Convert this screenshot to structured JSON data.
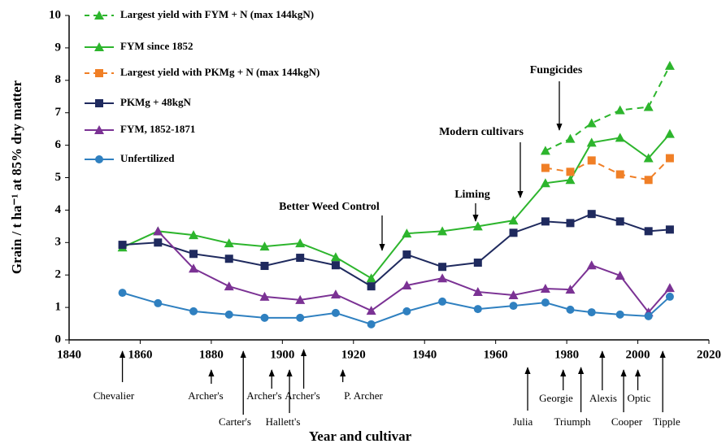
{
  "chart_data": {
    "type": "line",
    "x_label": "Year and cultivar",
    "y_label": "Grain / t ha⁻¹ at 85% dry matter",
    "x": [
      1855,
      1865,
      1875,
      1885,
      1895,
      1905,
      1915,
      1925,
      1935,
      1945,
      1955,
      1965,
      1974,
      1981,
      1987,
      1995,
      2003,
      2009
    ],
    "xlim": [
      1840,
      2020
    ],
    "xticks": [
      1840,
      1860,
      1880,
      1900,
      1920,
      1940,
      1960,
      1980,
      2000,
      2020
    ],
    "ylim": [
      0,
      10
    ],
    "yticks": [
      0,
      1,
      2,
      3,
      4,
      5,
      6,
      7,
      8,
      9,
      10
    ],
    "legend": "top-left",
    "series": [
      {
        "name": "Largest yield with FYM + N (max 144kgN)",
        "color": "#2db52d",
        "marker": "triangle",
        "dashed": true,
        "values": [
          null,
          null,
          null,
          null,
          null,
          null,
          null,
          null,
          null,
          null,
          null,
          null,
          5.83,
          6.2,
          6.68,
          7.08,
          7.18,
          8.45
        ]
      },
      {
        "name": "FYM since 1852",
        "color": "#2db52d",
        "marker": "triangle",
        "dashed": false,
        "values": [
          2.85,
          3.35,
          3.23,
          2.98,
          2.88,
          2.98,
          2.55,
          1.9,
          3.28,
          3.35,
          3.5,
          3.68,
          4.83,
          4.93,
          6.08,
          6.23,
          5.6,
          6.35
        ]
      },
      {
        "name": "Largest yield with PKMg + N (max 144kgN)",
        "color": "#f07f26",
        "marker": "square",
        "dashed": true,
        "values": [
          null,
          null,
          null,
          null,
          null,
          null,
          null,
          null,
          null,
          null,
          null,
          null,
          5.3,
          5.18,
          5.53,
          5.1,
          4.93,
          5.6
        ]
      },
      {
        "name": "PKMg + 48kgN",
        "color": "#1f2a5e",
        "marker": "square",
        "dashed": false,
        "values": [
          2.93,
          3.0,
          2.65,
          2.5,
          2.28,
          2.53,
          2.3,
          1.65,
          2.63,
          2.25,
          2.38,
          3.3,
          3.65,
          3.6,
          3.88,
          3.65,
          3.35,
          3.4
        ]
      },
      {
        "name": "FYM, 1852-1871",
        "color": "#7b3294",
        "marker": "triangle",
        "dashed": false,
        "values": [
          null,
          3.35,
          2.2,
          1.65,
          1.33,
          1.23,
          1.4,
          0.9,
          1.68,
          1.9,
          1.48,
          1.38,
          1.58,
          1.55,
          2.3,
          1.98,
          0.85,
          1.6
        ]
      },
      {
        "name": "Unfertilized",
        "color": "#2f80c0",
        "marker": "circle",
        "dashed": false,
        "values": [
          1.45,
          1.13,
          0.88,
          0.78,
          0.68,
          0.68,
          0.83,
          0.48,
          0.88,
          1.18,
          0.95,
          1.05,
          1.15,
          0.93,
          0.85,
          0.78,
          0.73,
          1.33
        ]
      }
    ],
    "annotations": [
      "Better Weed Control",
      "Liming",
      "Modern cultivars",
      "Fungicides"
    ],
    "cultivars": [
      {
        "label": "Chevalier",
        "year": 1855
      },
      {
        "label": "Archer's",
        "year": 1880
      },
      {
        "label": "Carter's",
        "year": 1889
      },
      {
        "label": "Archer's",
        "year": 1897
      },
      {
        "label": "Hallett's",
        "year": 1902
      },
      {
        "label": "Archer's",
        "year": 1906
      },
      {
        "label": "P. Archer",
        "year": 1917
      },
      {
        "label": "Julia",
        "year": 1969
      },
      {
        "label": "Georgie",
        "year": 1979
      },
      {
        "label": "Triumph",
        "year": 1984
      },
      {
        "label": "Alexis",
        "year": 1990
      },
      {
        "label": "Cooper",
        "year": 1996
      },
      {
        "label": "Optic",
        "year": 2000
      },
      {
        "label": "Tipple",
        "year": 2007
      }
    ]
  }
}
